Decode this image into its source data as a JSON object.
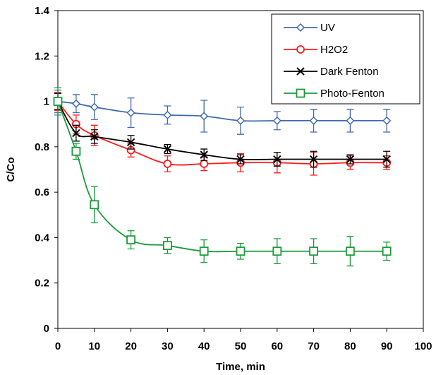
{
  "chart_data": {
    "type": "line",
    "xlabel": "Time, min",
    "ylabel": "C/Co",
    "xlim": [
      0,
      100
    ],
    "ylim": [
      0,
      1.4
    ],
    "x_ticks": [
      "0",
      "10",
      "20",
      "30",
      "40",
      "50",
      "60",
      "70",
      "80",
      "90",
      "100"
    ],
    "y_ticks": [
      "0",
      "0.2",
      "0.4",
      "0.6",
      "0.8",
      "1",
      "1.2",
      "1.4"
    ],
    "grid": false,
    "legend_position": "top-right",
    "series": [
      {
        "name": "UV",
        "color": "#4169b1",
        "marker": "diamond",
        "x": [
          0,
          5,
          10,
          20,
          30,
          40,
          50,
          60,
          70,
          80,
          90
        ],
        "values": [
          1.0,
          0.99,
          0.975,
          0.95,
          0.94,
          0.935,
          0.915,
          0.915,
          0.915,
          0.915,
          0.915
        ],
        "error": [
          0.05,
          0.04,
          0.055,
          0.065,
          0.04,
          0.07,
          0.06,
          0.04,
          0.05,
          0.05,
          0.05
        ]
      },
      {
        "name": "H2O2",
        "color": "#ff1a1a",
        "marker": "circle",
        "x": [
          0,
          5,
          10,
          20,
          30,
          40,
          50,
          60,
          70,
          80,
          90
        ],
        "values": [
          1.0,
          0.9,
          0.85,
          0.785,
          0.725,
          0.725,
          0.73,
          0.73,
          0.725,
          0.73,
          0.73
        ],
        "error": [
          0.04,
          0.04,
          0.045,
          0.03,
          0.035,
          0.03,
          0.04,
          0.045,
          0.05,
          0.03,
          0.03
        ]
      },
      {
        "name": "Dark Fenton",
        "color": "#000000",
        "marker": "cross",
        "x": [
          0,
          5,
          10,
          20,
          30,
          40,
          50,
          60,
          70,
          80,
          90
        ],
        "values": [
          1.0,
          0.86,
          0.845,
          0.82,
          0.79,
          0.765,
          0.745,
          0.745,
          0.745,
          0.745,
          0.745
        ],
        "error": [
          0.035,
          0.035,
          0.03,
          0.03,
          0.02,
          0.025,
          0.02,
          0.03,
          0.035,
          0.02,
          0.035
        ]
      },
      {
        "name": "Photo-Fenton",
        "color": "#1a9a3a",
        "marker": "square",
        "x": [
          0,
          5,
          10,
          20,
          30,
          40,
          50,
          60,
          70,
          80,
          90
        ],
        "values": [
          1.0,
          0.78,
          0.545,
          0.39,
          0.365,
          0.34,
          0.34,
          0.34,
          0.34,
          0.34,
          0.34
        ],
        "error": [
          0.06,
          0.035,
          0.08,
          0.04,
          0.035,
          0.05,
          0.035,
          0.055,
          0.055,
          0.065,
          0.04
        ]
      }
    ]
  }
}
